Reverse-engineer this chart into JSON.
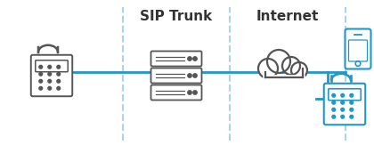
{
  "bg_color": "#ffffff",
  "line_color": "#2196c8",
  "dark_color": "#555555",
  "blue_color": "#2196c8",
  "divider_color": "#aad4e8",
  "label_sip": "SIP Trunk",
  "label_internet": "Internet",
  "label_fontsize": 11,
  "fig_width": 4.2,
  "fig_height": 1.63,
  "dpi": 100
}
